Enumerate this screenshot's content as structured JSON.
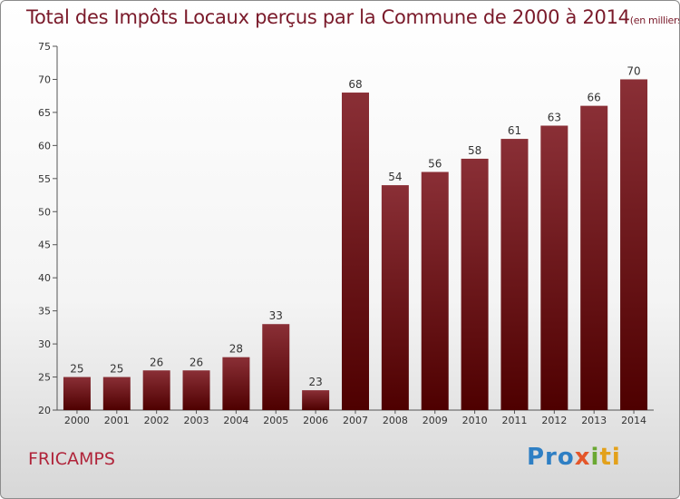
{
  "chart_data": {
    "type": "bar",
    "title": "Total des Impôts Locaux perçus par la Commune de 2000 à 2014",
    "unit_note": "(en milliers d'€)",
    "categories": [
      "2000",
      "2001",
      "2002",
      "2003",
      "2004",
      "2005",
      "2006",
      "2007",
      "2008",
      "2009",
      "2010",
      "2011",
      "2012",
      "2013",
      "2014"
    ],
    "values": [
      25,
      25,
      26,
      26,
      28,
      33,
      23,
      68,
      54,
      56,
      58,
      61,
      63,
      66,
      70
    ],
    "ylim": [
      20,
      75
    ],
    "yticks": [
      20,
      25,
      30,
      35,
      40,
      45,
      50,
      55,
      60,
      65,
      70,
      75
    ],
    "xlabel": "",
    "ylabel": "",
    "grid": false,
    "bar_color_top": "#8a2f36",
    "bar_color_bottom": "#4e0000"
  },
  "commune": "FRICAMPS",
  "logo": {
    "parts": [
      "Pro",
      "x",
      "i",
      "ti"
    ]
  }
}
